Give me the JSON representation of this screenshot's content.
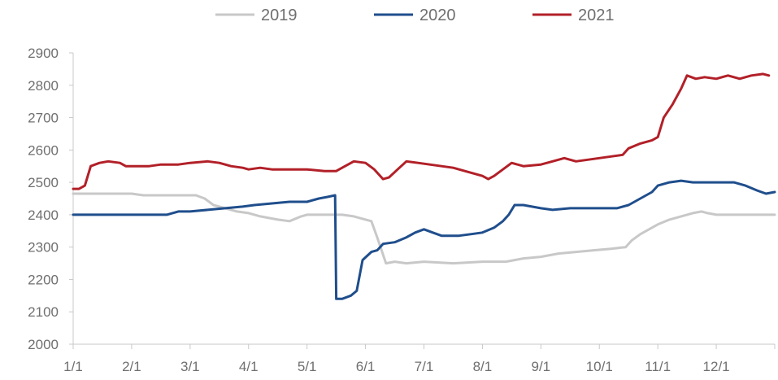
{
  "chart_data": {
    "type": "line",
    "title": "",
    "xlabel": "",
    "ylabel": "",
    "ylim": [
      2000,
      2900
    ],
    "yticks": [
      2000,
      2100,
      2200,
      2300,
      2400,
      2500,
      2600,
      2700,
      2800,
      2900
    ],
    "x_tick_labels": [
      "1/1",
      "2/1",
      "3/1",
      "4/1",
      "5/1",
      "6/1",
      "7/1",
      "8/1",
      "9/1",
      "10/1",
      "11/1",
      "12/1"
    ],
    "x_domain_months": [
      1,
      13
    ],
    "grid": false,
    "legend_position": "top",
    "series": [
      {
        "name": "2019",
        "color": "#c8c8c8",
        "points": [
          [
            1.0,
            2465
          ],
          [
            2.0,
            2465
          ],
          [
            2.2,
            2460
          ],
          [
            3.0,
            2460
          ],
          [
            3.1,
            2460
          ],
          [
            3.25,
            2450
          ],
          [
            3.4,
            2430
          ],
          [
            3.6,
            2420
          ],
          [
            3.8,
            2410
          ],
          [
            4.0,
            2405
          ],
          [
            4.2,
            2395
          ],
          [
            4.5,
            2385
          ],
          [
            4.7,
            2380
          ],
          [
            4.9,
            2395
          ],
          [
            5.0,
            2400
          ],
          [
            5.3,
            2400
          ],
          [
            5.5,
            2400
          ],
          [
            5.6,
            2400
          ],
          [
            5.8,
            2395
          ],
          [
            5.9,
            2390
          ],
          [
            6.1,
            2380
          ],
          [
            6.2,
            2330
          ],
          [
            6.35,
            2250
          ],
          [
            6.5,
            2255
          ],
          [
            6.7,
            2250
          ],
          [
            7.0,
            2255
          ],
          [
            7.5,
            2250
          ],
          [
            8.0,
            2255
          ],
          [
            8.4,
            2255
          ],
          [
            8.7,
            2265
          ],
          [
            9.0,
            2270
          ],
          [
            9.3,
            2280
          ],
          [
            9.6,
            2285
          ],
          [
            9.9,
            2290
          ],
          [
            10.2,
            2295
          ],
          [
            10.45,
            2300
          ],
          [
            10.55,
            2320
          ],
          [
            10.7,
            2340
          ],
          [
            10.9,
            2360
          ],
          [
            11.0,
            2370
          ],
          [
            11.2,
            2385
          ],
          [
            11.4,
            2395
          ],
          [
            11.6,
            2405
          ],
          [
            11.75,
            2410
          ],
          [
            11.85,
            2405
          ],
          [
            12.0,
            2400
          ],
          [
            12.3,
            2400
          ],
          [
            12.5,
            2400
          ],
          [
            13.0,
            2400
          ]
        ]
      },
      {
        "name": "2020",
        "color": "#1f4e8c",
        "points": [
          [
            1.0,
            2400
          ],
          [
            1.5,
            2400
          ],
          [
            2.0,
            2400
          ],
          [
            2.4,
            2400
          ],
          [
            2.6,
            2400
          ],
          [
            2.8,
            2410
          ],
          [
            3.0,
            2410
          ],
          [
            3.3,
            2415
          ],
          [
            3.6,
            2420
          ],
          [
            3.9,
            2425
          ],
          [
            4.1,
            2430
          ],
          [
            4.4,
            2435
          ],
          [
            4.7,
            2440
          ],
          [
            5.0,
            2440
          ],
          [
            5.2,
            2450
          ],
          [
            5.35,
            2455
          ],
          [
            5.48,
            2460
          ],
          [
            5.5,
            2140
          ],
          [
            5.6,
            2140
          ],
          [
            5.75,
            2150
          ],
          [
            5.85,
            2165
          ],
          [
            5.95,
            2260
          ],
          [
            6.1,
            2285
          ],
          [
            6.2,
            2290
          ],
          [
            6.3,
            2310
          ],
          [
            6.5,
            2315
          ],
          [
            6.7,
            2330
          ],
          [
            6.85,
            2345
          ],
          [
            7.0,
            2355
          ],
          [
            7.15,
            2345
          ],
          [
            7.3,
            2335
          ],
          [
            7.6,
            2335
          ],
          [
            7.8,
            2340
          ],
          [
            8.0,
            2345
          ],
          [
            8.2,
            2360
          ],
          [
            8.35,
            2380
          ],
          [
            8.45,
            2400
          ],
          [
            8.55,
            2430
          ],
          [
            8.7,
            2430
          ],
          [
            9.0,
            2420
          ],
          [
            9.2,
            2415
          ],
          [
            9.5,
            2420
          ],
          [
            9.8,
            2420
          ],
          [
            10.0,
            2420
          ],
          [
            10.3,
            2420
          ],
          [
            10.5,
            2430
          ],
          [
            10.7,
            2450
          ],
          [
            10.9,
            2470
          ],
          [
            11.0,
            2490
          ],
          [
            11.2,
            2500
          ],
          [
            11.4,
            2505
          ],
          [
            11.6,
            2500
          ],
          [
            12.0,
            2500
          ],
          [
            12.3,
            2500
          ],
          [
            12.5,
            2490
          ],
          [
            12.7,
            2475
          ],
          [
            12.85,
            2465
          ],
          [
            13.0,
            2470
          ]
        ]
      },
      {
        "name": "2021",
        "color": "#b22028",
        "points": [
          [
            1.0,
            2480
          ],
          [
            1.1,
            2480
          ],
          [
            1.2,
            2490
          ],
          [
            1.3,
            2550
          ],
          [
            1.45,
            2560
          ],
          [
            1.6,
            2565
          ],
          [
            1.8,
            2560
          ],
          [
            1.9,
            2550
          ],
          [
            2.0,
            2550
          ],
          [
            2.3,
            2550
          ],
          [
            2.5,
            2555
          ],
          [
            2.8,
            2555
          ],
          [
            3.0,
            2560
          ],
          [
            3.3,
            2565
          ],
          [
            3.5,
            2560
          ],
          [
            3.7,
            2550
          ],
          [
            3.9,
            2545
          ],
          [
            4.0,
            2540
          ],
          [
            4.2,
            2545
          ],
          [
            4.4,
            2540
          ],
          [
            4.6,
            2540
          ],
          [
            4.8,
            2540
          ],
          [
            5.0,
            2540
          ],
          [
            5.3,
            2535
          ],
          [
            5.5,
            2535
          ],
          [
            5.6,
            2545
          ],
          [
            5.8,
            2565
          ],
          [
            6.0,
            2560
          ],
          [
            6.15,
            2540
          ],
          [
            6.3,
            2510
          ],
          [
            6.4,
            2515
          ],
          [
            6.55,
            2540
          ],
          [
            6.7,
            2565
          ],
          [
            6.9,
            2560
          ],
          [
            7.1,
            2555
          ],
          [
            7.3,
            2550
          ],
          [
            7.5,
            2545
          ],
          [
            7.7,
            2535
          ],
          [
            7.9,
            2525
          ],
          [
            8.0,
            2520
          ],
          [
            8.1,
            2510
          ],
          [
            8.2,
            2520
          ],
          [
            8.35,
            2540
          ],
          [
            8.5,
            2560
          ],
          [
            8.7,
            2550
          ],
          [
            9.0,
            2555
          ],
          [
            9.2,
            2565
          ],
          [
            9.4,
            2575
          ],
          [
            9.6,
            2565
          ],
          [
            9.8,
            2570
          ],
          [
            10.0,
            2575
          ],
          [
            10.2,
            2580
          ],
          [
            10.4,
            2585
          ],
          [
            10.5,
            2605
          ],
          [
            10.7,
            2620
          ],
          [
            10.9,
            2630
          ],
          [
            11.0,
            2640
          ],
          [
            11.1,
            2700
          ],
          [
            11.25,
            2740
          ],
          [
            11.4,
            2790
          ],
          [
            11.5,
            2830
          ],
          [
            11.65,
            2820
          ],
          [
            11.8,
            2825
          ],
          [
            12.0,
            2820
          ],
          [
            12.2,
            2830
          ],
          [
            12.4,
            2820
          ],
          [
            12.6,
            2830
          ],
          [
            12.8,
            2835
          ],
          [
            12.9,
            2830
          ]
        ]
      }
    ]
  }
}
